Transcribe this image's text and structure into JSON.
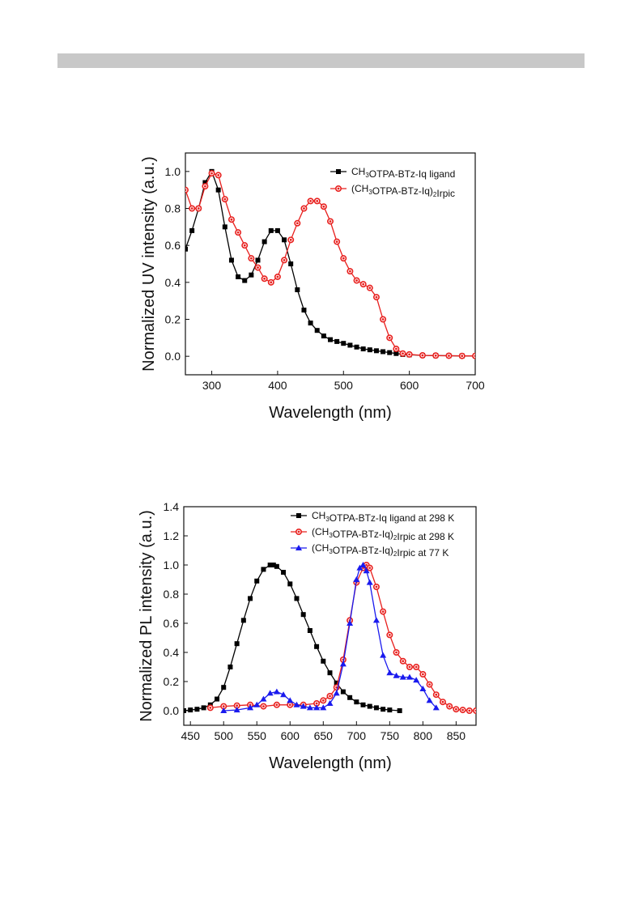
{
  "chart_data": [
    {
      "type": "line",
      "xlabel": "Wavelength (nm)",
      "ylabel": "Normalized UV intensity (a.u.)",
      "xlim": [
        260,
        700
      ],
      "ylim": [
        -0.1,
        1.1
      ],
      "xticks": [
        300,
        400,
        500,
        600,
        700
      ],
      "yticks": [
        0.0,
        0.2,
        0.4,
        0.6,
        0.8,
        1.0
      ],
      "legend_position": "top-right",
      "grid": false,
      "series": [
        {
          "name": "CH3OTPA-BTz-Iq ligand",
          "label_parts": [
            [
              "CH",
              ""
            ],
            [
              "3",
              "sub"
            ],
            [
              "OTPA-BTz-Iq ligand",
              ""
            ]
          ],
          "color": "#000000",
          "marker": "square",
          "x": [
            260,
            270,
            280,
            290,
            300,
            310,
            320,
            330,
            340,
            350,
            360,
            370,
            380,
            390,
            400,
            410,
            420,
            430,
            440,
            450,
            460,
            470,
            480,
            490,
            500,
            510,
            520,
            530,
            540,
            550,
            560,
            570,
            580,
            590,
            600,
            620,
            640,
            660,
            680,
            700
          ],
          "y": [
            0.58,
            0.68,
            0.8,
            0.94,
            1.0,
            0.9,
            0.7,
            0.52,
            0.43,
            0.41,
            0.44,
            0.52,
            0.62,
            0.68,
            0.68,
            0.63,
            0.5,
            0.36,
            0.25,
            0.18,
            0.14,
            0.11,
            0.09,
            0.08,
            0.07,
            0.06,
            0.05,
            0.04,
            0.035,
            0.03,
            0.025,
            0.02,
            0.015,
            0.01,
            0.008,
            0.005,
            0.004,
            0.003,
            0.002,
            0.002
          ]
        },
        {
          "name": "(CH3OTPA-BTz-Iq)2Irpic",
          "label_parts": [
            [
              "(CH",
              ""
            ],
            [
              "3",
              "sub"
            ],
            [
              "OTPA-BTz-Iq)",
              ""
            ],
            [
              "2",
              "sub"
            ],
            [
              "Irpic",
              ""
            ]
          ],
          "color": "#e8201e",
          "marker": "circle",
          "x": [
            260,
            270,
            280,
            290,
            300,
            310,
            320,
            330,
            340,
            350,
            360,
            370,
            380,
            390,
            400,
            410,
            420,
            430,
            440,
            450,
            460,
            470,
            480,
            490,
            500,
            510,
            520,
            530,
            540,
            550,
            560,
            570,
            580,
            590,
            600,
            620,
            640,
            660,
            680,
            700
          ],
          "y": [
            0.9,
            0.8,
            0.8,
            0.92,
            0.99,
            0.98,
            0.85,
            0.74,
            0.67,
            0.6,
            0.53,
            0.48,
            0.42,
            0.4,
            0.43,
            0.52,
            0.63,
            0.72,
            0.8,
            0.84,
            0.84,
            0.81,
            0.73,
            0.62,
            0.53,
            0.46,
            0.41,
            0.39,
            0.37,
            0.32,
            0.2,
            0.1,
            0.04,
            0.015,
            0.01,
            0.005,
            0.004,
            0.003,
            0.002,
            0.002
          ]
        }
      ]
    },
    {
      "type": "line",
      "xlabel": "Wavelength (nm)",
      "ylabel": "Normalized PL intensity (a.u.)",
      "xlim": [
        440,
        880
      ],
      "ylim": [
        -0.1,
        1.4
      ],
      "xticks": [
        450,
        500,
        550,
        600,
        650,
        700,
        750,
        800,
        850
      ],
      "yticks": [
        0.0,
        0.2,
        0.4,
        0.6,
        0.8,
        1.0,
        1.2,
        1.4
      ],
      "legend_position": "top-right",
      "grid": false,
      "series": [
        {
          "name": "CH3OTPA-BTz-Iq ligand at 298 K",
          "label_parts": [
            [
              "CH",
              ""
            ],
            [
              "3",
              "sub"
            ],
            [
              "OTPA-BTz-Iq ligand at 298 K",
              ""
            ]
          ],
          "color": "#000000",
          "marker": "square",
          "x": [
            440,
            450,
            460,
            470,
            480,
            490,
            500,
            510,
            520,
            530,
            540,
            550,
            560,
            570,
            575,
            580,
            590,
            600,
            610,
            620,
            630,
            640,
            650,
            660,
            670,
            680,
            690,
            700,
            710,
            720,
            730,
            740,
            750,
            765
          ],
          "y": [
            0.0,
            0.005,
            0.01,
            0.02,
            0.04,
            0.08,
            0.16,
            0.3,
            0.46,
            0.62,
            0.77,
            0.89,
            0.97,
            1.0,
            1.0,
            0.99,
            0.95,
            0.87,
            0.77,
            0.66,
            0.55,
            0.44,
            0.34,
            0.26,
            0.19,
            0.13,
            0.09,
            0.06,
            0.04,
            0.03,
            0.02,
            0.01,
            0.005,
            0.0
          ]
        },
        {
          "name": "(CH3OTPA-BTz-Iq)2Irpic at 298 K",
          "label_parts": [
            [
              "(CH",
              ""
            ],
            [
              "3",
              "sub"
            ],
            [
              "OTPA-BTz-Iq)",
              ""
            ],
            [
              "2",
              "sub"
            ],
            [
              "Irpic at 298 K",
              ""
            ]
          ],
          "color": "#e8201e",
          "marker": "circle",
          "x": [
            480,
            500,
            520,
            540,
            560,
            580,
            600,
            620,
            640,
            650,
            660,
            670,
            680,
            690,
            700,
            710,
            715,
            720,
            730,
            740,
            750,
            760,
            770,
            780,
            790,
            800,
            810,
            820,
            830,
            840,
            850,
            860,
            870,
            880
          ],
          "y": [
            0.02,
            0.03,
            0.035,
            0.04,
            0.03,
            0.04,
            0.04,
            0.04,
            0.05,
            0.07,
            0.1,
            0.16,
            0.35,
            0.62,
            0.88,
            0.98,
            1.0,
            0.98,
            0.85,
            0.68,
            0.52,
            0.4,
            0.34,
            0.3,
            0.3,
            0.25,
            0.18,
            0.11,
            0.06,
            0.03,
            0.01,
            0.005,
            0.0,
            0.0
          ]
        },
        {
          "name": "(CH3OTPA-BTz-Iq)2Irpic at 77 K",
          "label_parts": [
            [
              "(CH",
              ""
            ],
            [
              "3",
              "sub"
            ],
            [
              "OTPA-BTz-Iq)",
              ""
            ],
            [
              "2",
              "sub"
            ],
            [
              "Irpic at 77 K",
              ""
            ]
          ],
          "color": "#1a1aee",
          "marker": "triangle",
          "x": [
            500,
            520,
            540,
            550,
            560,
            570,
            580,
            590,
            600,
            610,
            620,
            630,
            640,
            650,
            660,
            670,
            680,
            690,
            700,
            705,
            710,
            715,
            720,
            730,
            740,
            750,
            760,
            770,
            780,
            790,
            800,
            810,
            820
          ],
          "y": [
            0.0,
            0.005,
            0.02,
            0.04,
            0.08,
            0.12,
            0.13,
            0.11,
            0.07,
            0.04,
            0.03,
            0.02,
            0.02,
            0.02,
            0.05,
            0.12,
            0.32,
            0.6,
            0.9,
            0.98,
            1.0,
            0.96,
            0.88,
            0.62,
            0.38,
            0.26,
            0.24,
            0.23,
            0.23,
            0.21,
            0.15,
            0.07,
            0.02
          ]
        }
      ]
    }
  ]
}
